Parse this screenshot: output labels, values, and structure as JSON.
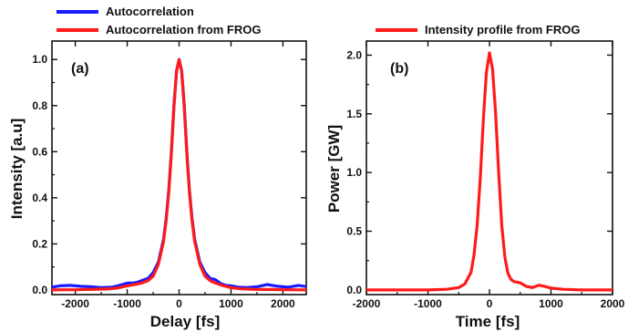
{
  "chart_data": [
    {
      "type": "line",
      "panel_tag": "(a)",
      "xlabel": "Delay  [fs]",
      "ylabel": "Intensity  [a.u]",
      "xlim": [
        -2450,
        2450
      ],
      "ylim": [
        -0.02,
        1.08
      ],
      "xticks": [
        -2000,
        -1000,
        0,
        1000,
        2000
      ],
      "xtick_labels": [
        "-2000",
        "-1000",
        "0",
        "1000",
        "2000"
      ],
      "yticks": [
        0.0,
        0.2,
        0.4,
        0.6,
        0.8,
        1.0
      ],
      "ytick_labels": [
        "0.0",
        "0.2",
        "0.4",
        "0.6",
        "0.8",
        "1.0"
      ],
      "grid": false,
      "legend_position": "above-plot-left",
      "series": [
        {
          "name": "Autocorrelation",
          "color": "#1a1aff",
          "x": [
            -2450,
            -2300,
            -2100,
            -1900,
            -1700,
            -1500,
            -1300,
            -1150,
            -1000,
            -900,
            -800,
            -700,
            -600,
            -500,
            -400,
            -300,
            -250,
            -200,
            -150,
            -100,
            -50,
            0,
            50,
            100,
            150,
            200,
            250,
            300,
            400,
            500,
            600,
            700,
            800,
            900,
            1000,
            1150,
            1300,
            1500,
            1700,
            1900,
            2100,
            2300,
            2450
          ],
          "y": [
            0.012,
            0.018,
            0.02,
            0.016,
            0.014,
            0.01,
            0.012,
            0.02,
            0.03,
            0.03,
            0.034,
            0.042,
            0.05,
            0.075,
            0.12,
            0.22,
            0.31,
            0.43,
            0.6,
            0.8,
            0.95,
            1.0,
            0.95,
            0.8,
            0.6,
            0.43,
            0.31,
            0.22,
            0.12,
            0.075,
            0.05,
            0.045,
            0.028,
            0.02,
            0.018,
            0.012,
            0.01,
            0.014,
            0.024,
            0.016,
            0.012,
            0.02,
            0.015
          ]
        },
        {
          "name": "Autocorrelation from FROG",
          "color": "#ff1a1a",
          "x": [
            -2450,
            -2200,
            -2000,
            -1800,
            -1600,
            -1400,
            -1200,
            -1000,
            -900,
            -800,
            -700,
            -600,
            -500,
            -400,
            -300,
            -250,
            -200,
            -150,
            -100,
            -50,
            0,
            50,
            100,
            150,
            200,
            250,
            300,
            400,
            500,
            600,
            700,
            800,
            900,
            1000,
            1200,
            1400,
            1600,
            1800,
            2000,
            2200,
            2450
          ],
          "y": [
            0.0,
            0.001,
            0.001,
            0.002,
            0.003,
            0.004,
            0.008,
            0.018,
            0.022,
            0.026,
            0.032,
            0.04,
            0.06,
            0.11,
            0.21,
            0.3,
            0.42,
            0.59,
            0.79,
            0.95,
            1.0,
            0.95,
            0.79,
            0.59,
            0.42,
            0.3,
            0.21,
            0.11,
            0.06,
            0.04,
            0.03,
            0.022,
            0.016,
            0.01,
            0.005,
            0.003,
            0.002,
            0.002,
            0.001,
            0.001,
            0.0
          ]
        }
      ]
    },
    {
      "type": "line",
      "panel_tag": "(b)",
      "xlabel": "Time  [fs]",
      "ylabel": "Power  [GW]",
      "xlim": [
        -2000,
        2000
      ],
      "ylim": [
        -0.04,
        2.12
      ],
      "xticks": [
        -2000,
        -1000,
        0,
        1000,
        2000
      ],
      "xtick_labels": [
        "-2000",
        "-1000",
        "0",
        "1000",
        "2000"
      ],
      "yticks": [
        0.0,
        0.5,
        1.0,
        1.5,
        2.0
      ],
      "ytick_labels": [
        "0.0",
        "0.5",
        "1.0",
        "1.5",
        "2.0"
      ],
      "grid": false,
      "legend_position": "above-plot-left",
      "series": [
        {
          "name": "Intensity profile from FROG",
          "color": "#ff1a1a",
          "x": [
            -2000,
            -1500,
            -1000,
            -700,
            -500,
            -400,
            -300,
            -250,
            -200,
            -150,
            -100,
            -50,
            0,
            50,
            100,
            150,
            200,
            250,
            300,
            350,
            400,
            500,
            600,
            700,
            800,
            900,
            1000,
            1200,
            1500,
            2000
          ],
          "y": [
            0.0,
            0.0,
            0.0,
            0.005,
            0.02,
            0.05,
            0.15,
            0.3,
            0.55,
            0.95,
            1.45,
            1.85,
            2.02,
            1.88,
            1.5,
            1.0,
            0.55,
            0.28,
            0.14,
            0.09,
            0.07,
            0.06,
            0.03,
            0.02,
            0.04,
            0.03,
            0.015,
            0.005,
            0.0,
            0.0
          ]
        }
      ]
    }
  ]
}
